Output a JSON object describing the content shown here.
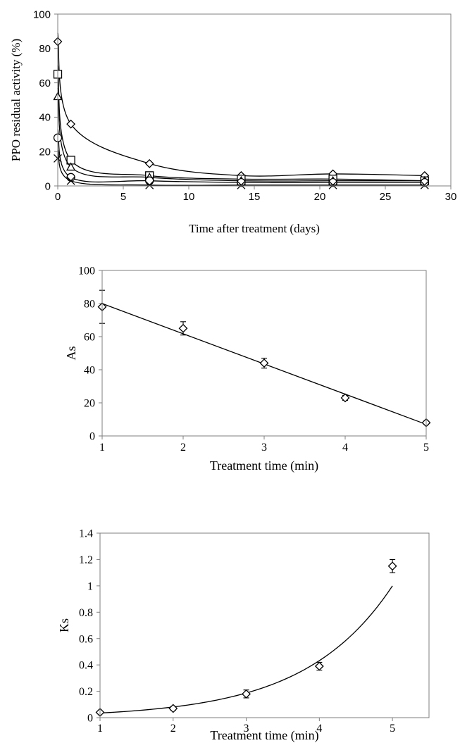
{
  "chart_data": [
    {
      "type": "scatter",
      "xlabel": "Time after treatment (days)",
      "ylabel": "PPO residual activity (%)",
      "xlim": [
        0,
        30
      ],
      "ylim": [
        0,
        100
      ],
      "xticks": [
        "0",
        "5",
        "10",
        "15",
        "20",
        "25",
        "30"
      ],
      "yticks": [
        "0",
        "20",
        "40",
        "60",
        "80",
        "100"
      ],
      "grid": false,
      "series": [
        {
          "marker": "diamond",
          "x": [
            0,
            1,
            7,
            14,
            21,
            28
          ],
          "y": [
            84,
            36,
            13,
            6,
            7,
            6
          ]
        },
        {
          "marker": "square",
          "x": [
            0,
            1,
            7,
            14,
            21,
            28
          ],
          "y": [
            65,
            15,
            6,
            4,
            4,
            3
          ]
        },
        {
          "marker": "triangle",
          "x": [
            0,
            1,
            7,
            14,
            21,
            28
          ],
          "y": [
            52,
            11,
            5,
            3,
            3,
            3
          ]
        },
        {
          "marker": "circle",
          "x": [
            0,
            1,
            7,
            14,
            21,
            28
          ],
          "y": [
            28,
            5,
            3,
            2,
            2,
            2
          ]
        },
        {
          "marker": "cross",
          "x": [
            0,
            1,
            7,
            14,
            21,
            28
          ],
          "y": [
            16,
            3,
            0.5,
            0.5,
            0.5,
            0.5
          ]
        }
      ]
    },
    {
      "type": "scatter",
      "xlabel": "Treatment time (min)",
      "ylabel": "As",
      "xlim": [
        1,
        5
      ],
      "ylim": [
        0,
        100
      ],
      "xticks": [
        "1",
        "2",
        "3",
        "4",
        "5"
      ],
      "yticks": [
        "0",
        "20",
        "40",
        "60",
        "80",
        "100"
      ],
      "grid": false,
      "series": [
        {
          "marker": "diamond",
          "x": [
            1,
            2,
            3,
            4,
            5
          ],
          "y": [
            78,
            65,
            44,
            23,
            8
          ],
          "error": [
            10,
            4,
            3,
            1.5,
            1
          ]
        }
      ],
      "fit": {
        "kind": "linear",
        "from": [
          1,
          80
        ],
        "to": [
          5,
          7
        ]
      }
    },
    {
      "type": "scatter",
      "xlabel": "Treatment time (min)",
      "ylabel": "Ks",
      "xlim": [
        1,
        5.5
      ],
      "ylim": [
        0,
        1.4
      ],
      "xticks": [
        "1",
        "2",
        "3",
        "4",
        "5"
      ],
      "yticks": [
        "0",
        "0.2",
        "0.4",
        "0.6",
        "0.8",
        "1",
        "1.2",
        "1.4"
      ],
      "grid": false,
      "series": [
        {
          "marker": "diamond",
          "x": [
            1,
            2,
            3,
            4,
            5
          ],
          "y": [
            0.04,
            0.07,
            0.18,
            0.39,
            1.15
          ],
          "error": [
            0.01,
            0.015,
            0.03,
            0.03,
            0.05
          ]
        }
      ],
      "fit": {
        "kind": "exponential",
        "x": [
          1,
          5
        ],
        "y": [
          0.035,
          1.0
        ]
      }
    }
  ]
}
